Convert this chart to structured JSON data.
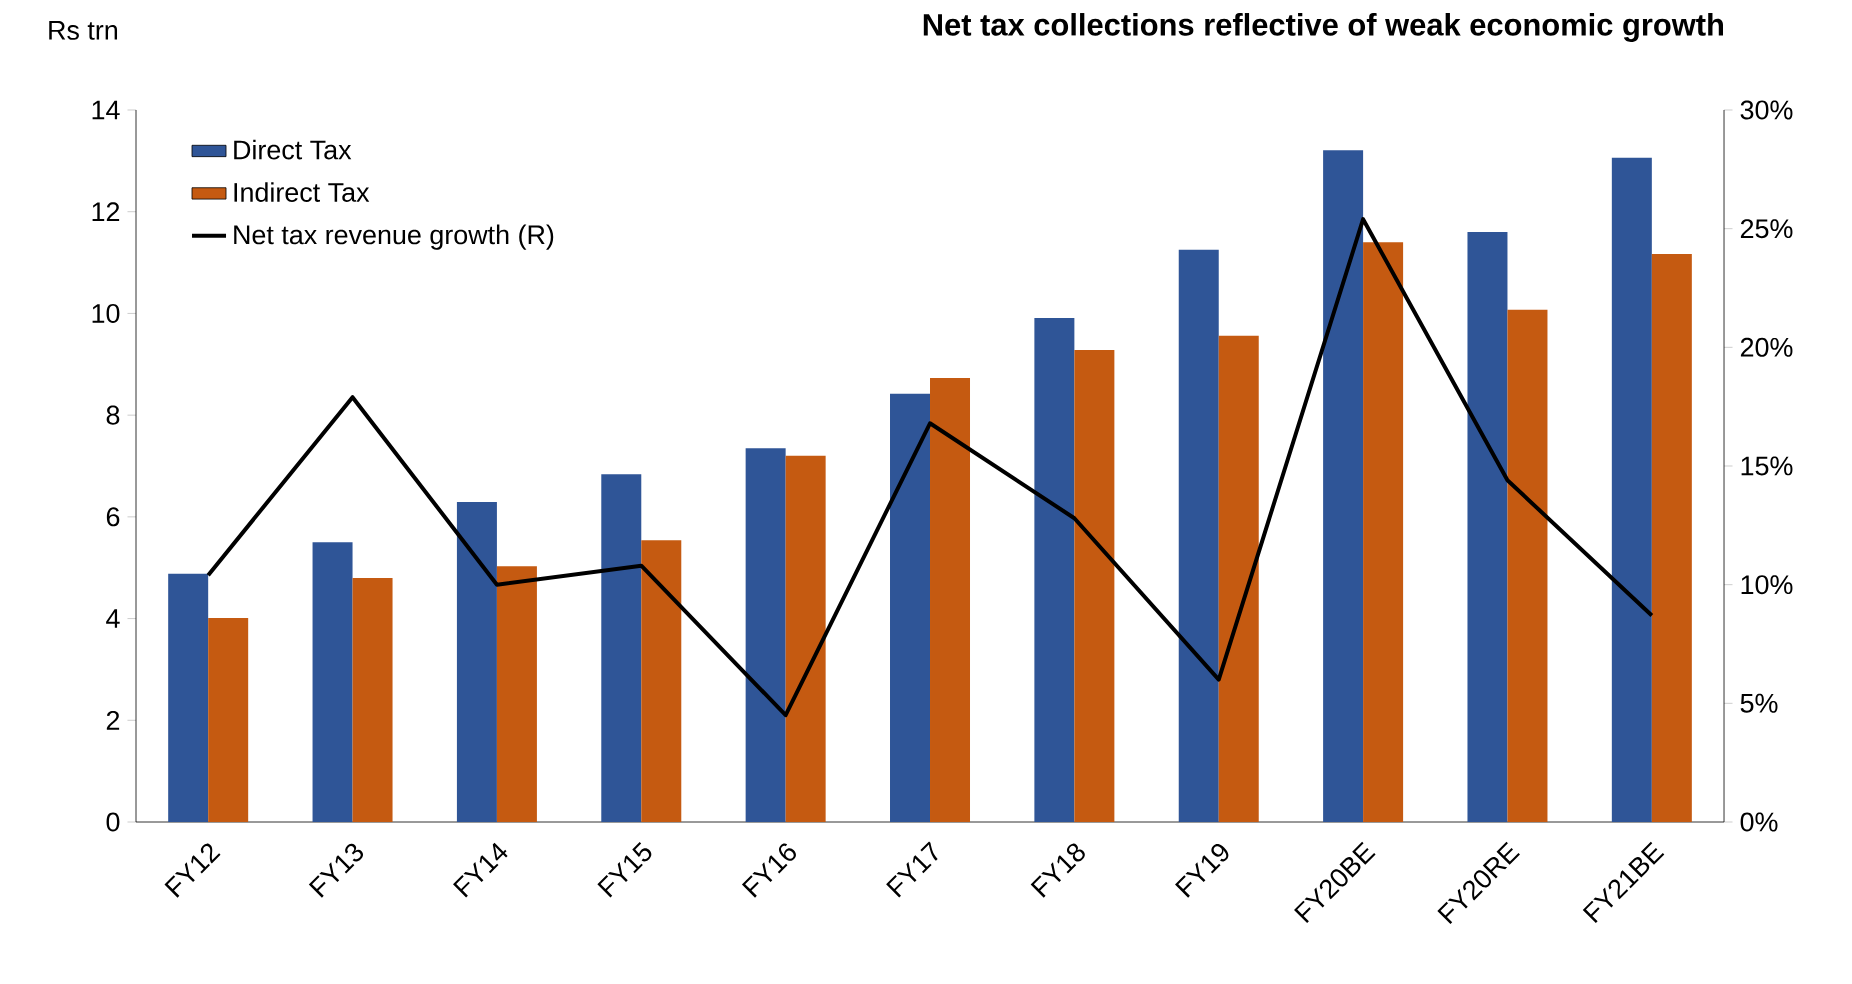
{
  "chart_data": {
    "type": "bar",
    "title": "Net tax collections reflective of weak economic growth",
    "ylabel": "Rs trn",
    "categories": [
      "FY12",
      "FY13",
      "FY14",
      "FY15",
      "FY16",
      "FY17",
      "FY18",
      "FY19",
      "FY20BE",
      "FY20RE",
      "FY21BE"
    ],
    "series": [
      {
        "name": "Direct Tax",
        "color": "#2f5597",
        "values": [
          4.88,
          5.5,
          6.29,
          6.84,
          7.35,
          8.42,
          9.91,
          11.25,
          13.21,
          11.6,
          13.06
        ]
      },
      {
        "name": "Indirect Tax",
        "color": "#c55a11",
        "values": [
          4.01,
          4.8,
          5.03,
          5.54,
          7.2,
          8.73,
          9.28,
          9.56,
          11.4,
          10.07,
          11.17
        ]
      },
      {
        "name": "Net tax revenue growth (R)",
        "type": "line",
        "axis": "y2",
        "color": "#000000",
        "values": [
          10.4,
          17.9,
          10.0,
          10.8,
          4.5,
          16.8,
          12.8,
          6.0,
          25.4,
          14.4,
          8.7
        ]
      }
    ],
    "ylim": [
      0,
      14
    ],
    "yticks": [
      0,
      2,
      4,
      6,
      8,
      10,
      12,
      14
    ],
    "y2lim": [
      0,
      30
    ],
    "y2ticks": [
      {
        "value": 0,
        "label": "0%"
      },
      {
        "value": 5,
        "label": "5%"
      },
      {
        "value": 10,
        "label": "10%"
      },
      {
        "value": 15,
        "label": "15%"
      },
      {
        "value": 20,
        "label": "20%"
      },
      {
        "value": 25,
        "label": "25%"
      },
      {
        "value": 30,
        "label": "30%"
      }
    ],
    "legend": "top left",
    "grid": false,
    "marker": "none",
    "line_style": "solid"
  }
}
